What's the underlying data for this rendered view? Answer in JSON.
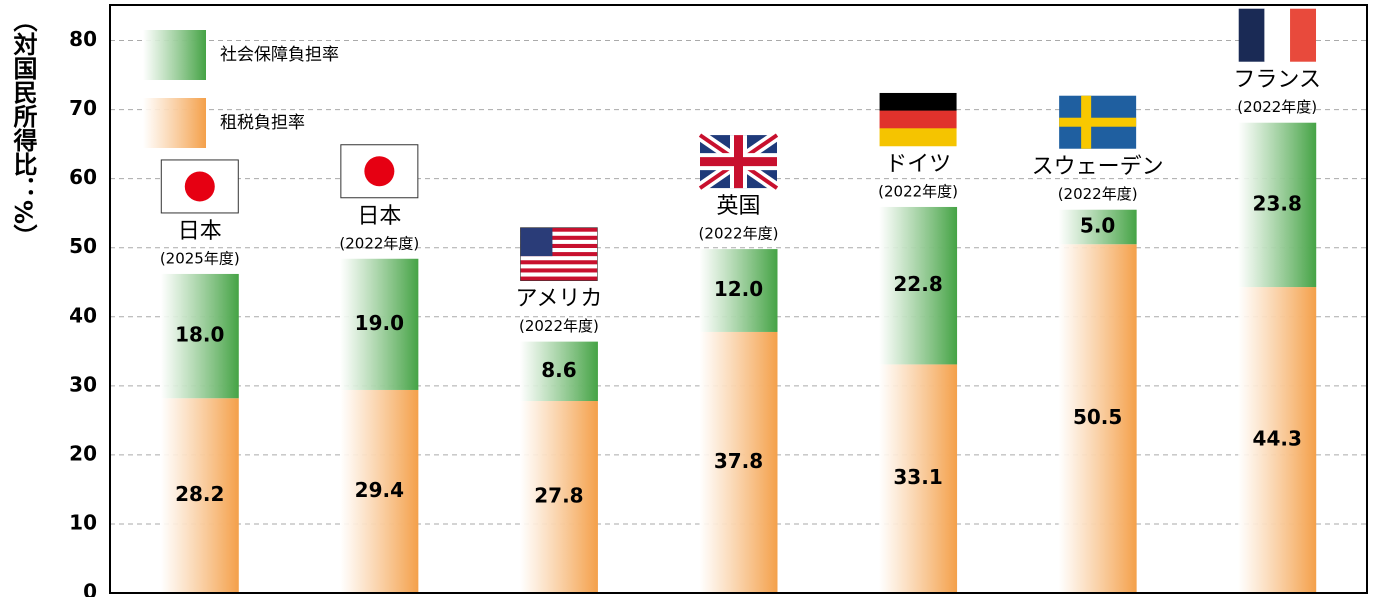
{
  "chart_data": {
    "type": "stacked_bar",
    "y_label": "（対国民所得比：%）",
    "categories": [
      "日本",
      "日本",
      "アメリカ",
      "英国",
      "ドイツ",
      "スウェーデン",
      "フランス"
    ],
    "category_years": [
      "(2025年度)",
      "(2022年度)",
      "(2022年度)",
      "(2022年度)",
      "(2022年度)",
      "(2022年度)",
      "(2022年度)"
    ],
    "series": [
      {
        "name": "租税負担率",
        "color": "#f4a04a",
        "values": [
          28.2,
          29.4,
          27.8,
          37.8,
          33.1,
          50.5,
          44.3
        ],
        "value_labels": [
          "28.2",
          "29.4",
          "27.8",
          "37.8",
          "33.1",
          "50.5",
          "44.3"
        ]
      },
      {
        "name": "社会保障負担率",
        "color": "#45a345",
        "values": [
          18.0,
          19.0,
          8.6,
          12.0,
          22.8,
          5.0,
          23.8
        ],
        "value_labels": [
          "18.0",
          "19.0",
          "8.6",
          "12.0",
          "22.8",
          "5.0",
          "23.8"
        ]
      }
    ],
    "ylim": [
      0,
      85
    ],
    "yticks": [
      0,
      10,
      20,
      30,
      40,
      50,
      60,
      70,
      80
    ],
    "grid": true
  }
}
